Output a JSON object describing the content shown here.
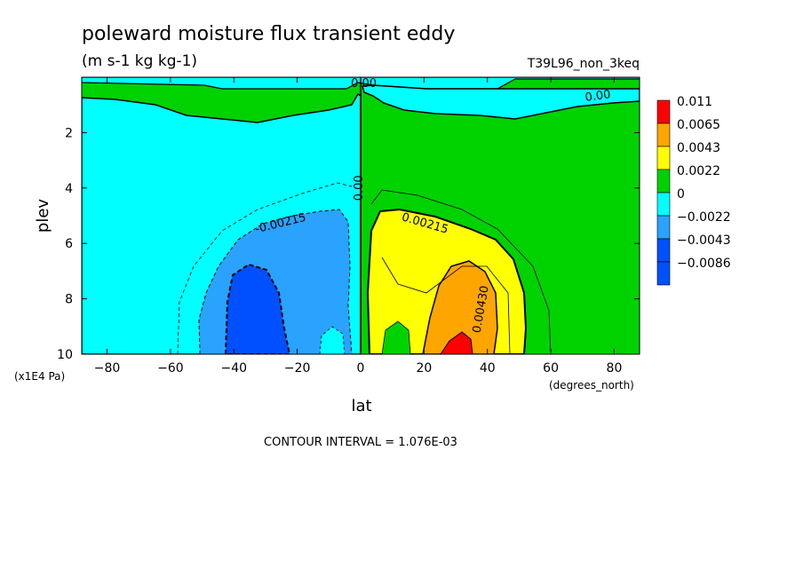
{
  "chart_data": {
    "type": "heatmap",
    "title": "poleward moisture flux transient eddy",
    "subtitle": "(m s-1 kg kg-1)",
    "run_label": "T39L96_non_3keq",
    "xlabel": "lat",
    "xunit": "(degrees_north)",
    "ylabel": "plev",
    "yunit": "(x1E4 Pa)",
    "xlim": [
      -88,
      88
    ],
    "ylim": [
      10,
      0
    ],
    "x_ticks": [
      -80,
      -60,
      -40,
      -20,
      0,
      20,
      40,
      60,
      80
    ],
    "y_ticks": [
      2,
      4,
      6,
      8,
      10
    ],
    "footer": "CONTOUR INTERVAL = 1.076E-03",
    "contour_labels": [
      "0.00",
      "0.00",
      "0.00",
      "-0.00215",
      "0.00215",
      "0.00430"
    ],
    "legend": {
      "placement": "right",
      "entries": [
        {
          "label": "0.011",
          "color": "#ff0000"
        },
        {
          "label": "0.0065",
          "color": "#ffa500"
        },
        {
          "label": "0.0043",
          "color": "#ffff00"
        },
        {
          "label": "0.0022",
          "color": "#00d200"
        },
        {
          "label": "0",
          "color": "#00ffff"
        },
        {
          "label": "-0.0022",
          "color": "#2aa2ff"
        },
        {
          "label": "-0.0043",
          "color": "#0050ff"
        },
        {
          "label": "-0.0086",
          "color": "#0050ff"
        }
      ]
    }
  }
}
